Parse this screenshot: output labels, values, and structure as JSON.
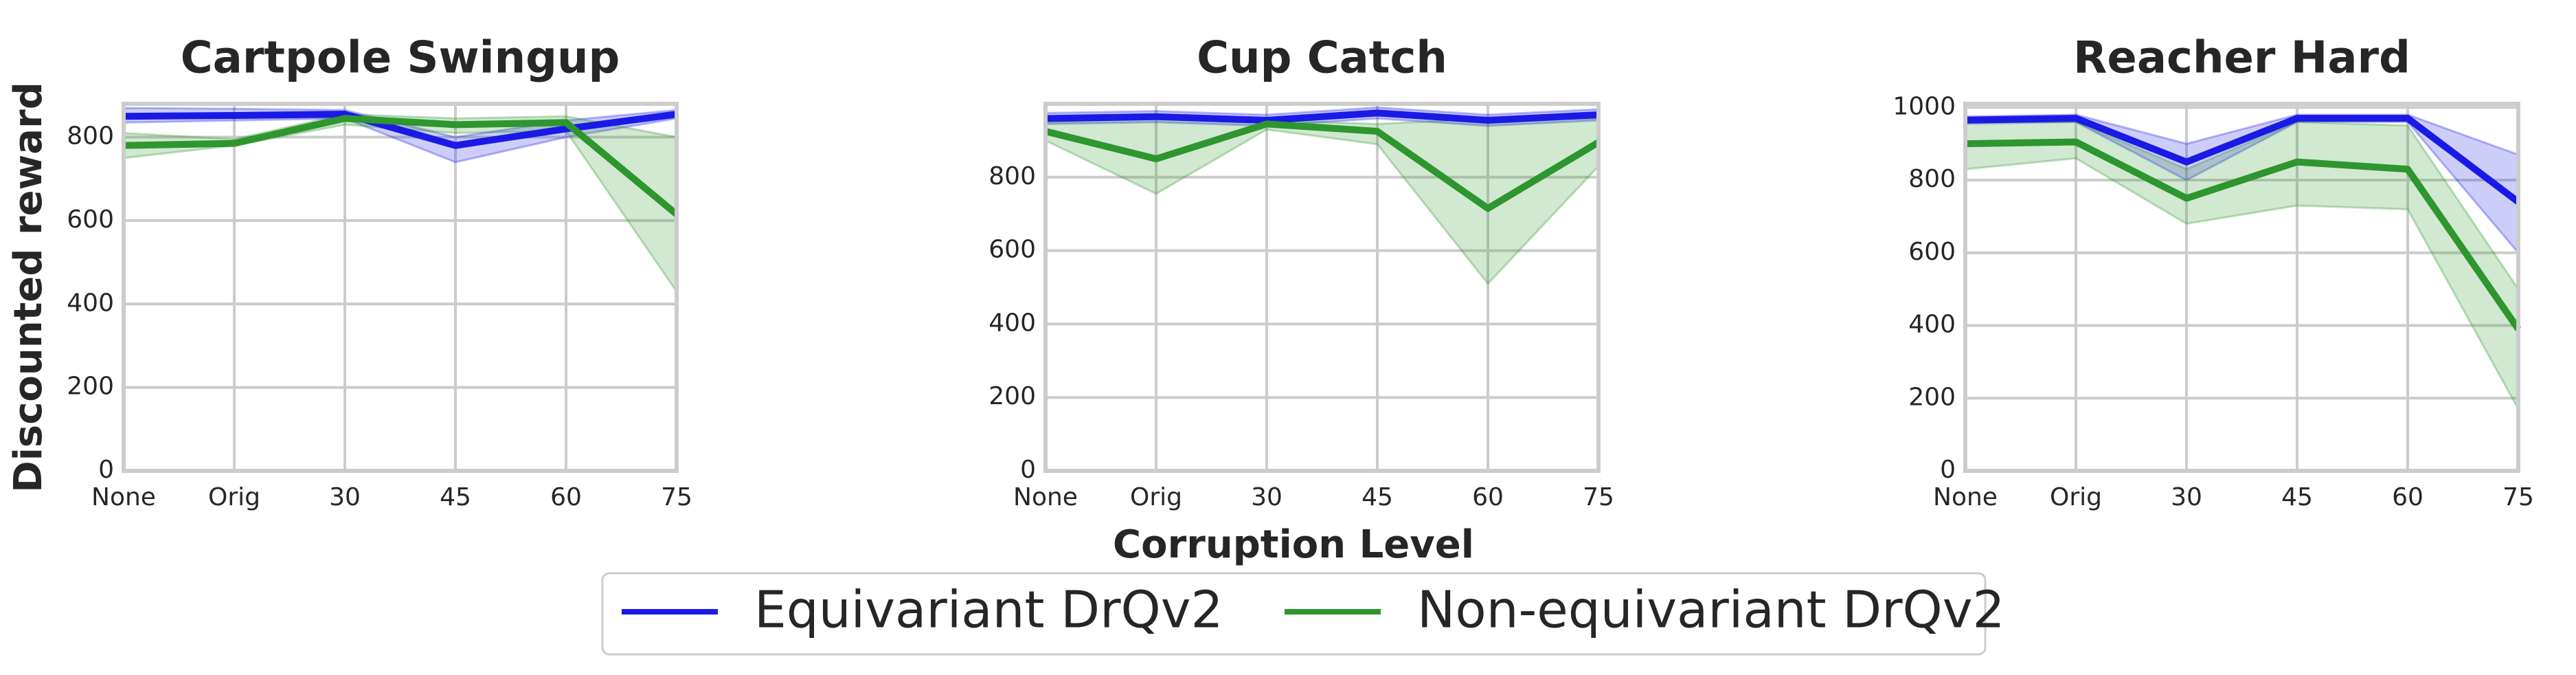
{
  "chart_data": [
    {
      "type": "line",
      "title": "Cartpole Swingup",
      "ylabel": "Discounted reward",
      "categories": [
        "None",
        "Orig",
        "30",
        "45",
        "60",
        "75"
      ],
      "ylim": [
        0,
        880
      ],
      "yticks": [
        0,
        200,
        400,
        600,
        800
      ],
      "grid": true,
      "series": [
        {
          "name": "Equivariant DrQv2",
          "color": "#1a1ae6",
          "values": [
            850,
            852,
            855,
            780,
            820,
            855
          ],
          "lower": [
            835,
            840,
            845,
            740,
            800,
            845
          ],
          "upper": [
            870,
            868,
            865,
            800,
            840,
            865
          ]
        },
        {
          "name": "Non-equivariant DrQv2",
          "color": "#2e962e",
          "values": [
            780,
            785,
            845,
            830,
            835,
            615
          ],
          "lower": [
            750,
            780,
            830,
            810,
            815,
            430
          ],
          "upper": [
            810,
            795,
            855,
            845,
            850,
            800
          ]
        }
      ]
    },
    {
      "type": "line",
      "title": "Cup Catch",
      "xlabel": "Corruption Level",
      "categories": [
        "None",
        "Orig",
        "30",
        "45",
        "60",
        "75"
      ],
      "ylim": [
        0,
        1000
      ],
      "yticks": [
        0,
        200,
        400,
        600,
        800
      ],
      "grid": true,
      "series": [
        {
          "name": "Equivariant DrQv2",
          "color": "#1a1ae6",
          "values": [
            960,
            965,
            955,
            975,
            955,
            970
          ],
          "lower": [
            945,
            950,
            940,
            960,
            940,
            955
          ],
          "upper": [
            975,
            980,
            970,
            990,
            970,
            985
          ]
        },
        {
          "name": "Non-equivariant DrQv2",
          "color": "#2e962e",
          "values": [
            925,
            850,
            945,
            925,
            715,
            895
          ],
          "lower": [
            900,
            755,
            930,
            890,
            510,
            830
          ],
          "upper": [
            950,
            960,
            955,
            945,
            960,
            960
          ]
        }
      ]
    },
    {
      "type": "line",
      "title": "Reacher Hard",
      "categories": [
        "None",
        "Orig",
        "30",
        "45",
        "60",
        "75"
      ],
      "ylim": [
        0,
        1010
      ],
      "yticks": [
        0,
        200,
        400,
        600,
        800,
        1000
      ],
      "grid": true,
      "series": [
        {
          "name": "Equivariant DrQv2",
          "color": "#1a1ae6",
          "values": [
            965,
            970,
            850,
            970,
            970,
            740
          ],
          "lower": [
            955,
            960,
            800,
            960,
            960,
            600
          ],
          "upper": [
            975,
            980,
            900,
            980,
            980,
            870
          ]
        },
        {
          "name": "Non-equivariant DrQv2",
          "color": "#2e962e",
          "values": [
            900,
            905,
            750,
            850,
            830,
            390
          ],
          "lower": [
            830,
            860,
            680,
            730,
            720,
            170
          ],
          "upper": [
            960,
            960,
            830,
            960,
            950,
            500
          ]
        }
      ]
    }
  ]
}
